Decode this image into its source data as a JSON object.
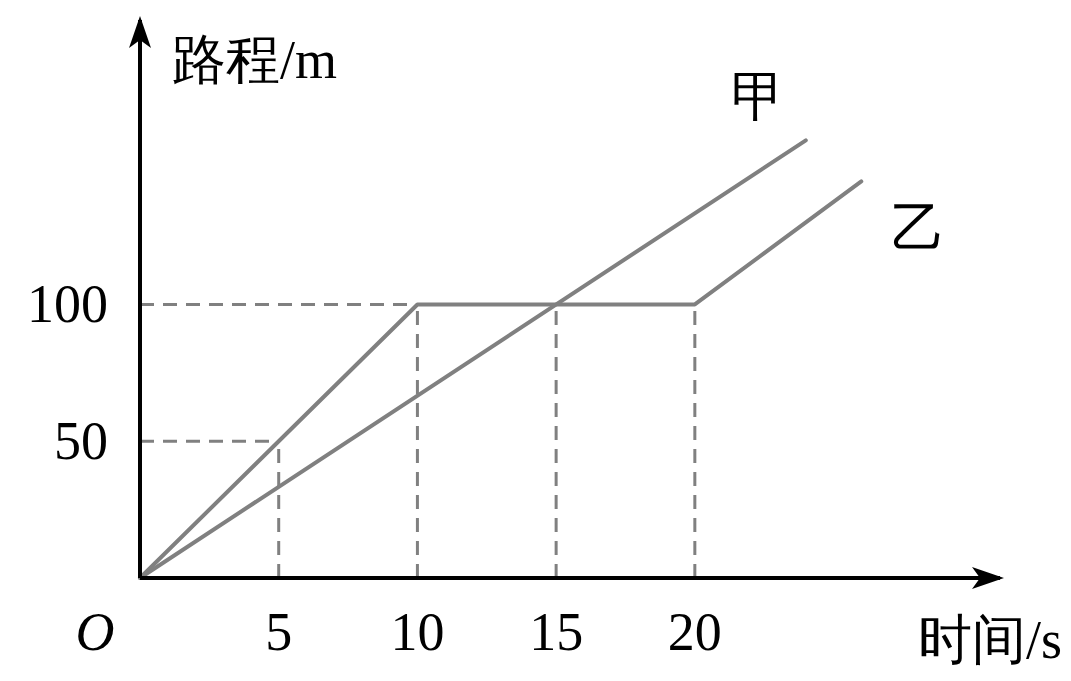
{
  "chart_data": {
    "type": "line",
    "xlabel": "时间/s",
    "ylabel": "路程/m",
    "xlim": [
      0,
      31
    ],
    "ylim": [
      0,
      204
    ],
    "xticks": [
      5,
      10,
      15,
      20
    ],
    "annotations": [
      "O"
    ],
    "yticks": [
      50,
      100
    ],
    "series": [
      {
        "name": "甲",
        "color": "#808080",
        "x": [
          0,
          24
        ],
        "values": [
          0,
          160
        ]
      },
      {
        "name": "乙",
        "color": "#808080",
        "x": [
          0,
          5,
          10,
          15,
          20,
          26
        ],
        "values": [
          0,
          50,
          100,
          100,
          100,
          145
        ]
      }
    ],
    "ref_lines": [
      {
        "axis": "y",
        "value": 50,
        "color": "#808080",
        "line_style": "dashed"
      },
      {
        "axis": "y",
        "value": 100,
        "color": "#808080",
        "line_style": "dashed"
      },
      {
        "axis": "x",
        "value": 5,
        "color": "#808080",
        "line_style": "dashed"
      },
      {
        "axis": "x",
        "value": 10,
        "color": "#808080",
        "line_style": "dashed"
      },
      {
        "axis": "x",
        "value": 15,
        "color": "#808080",
        "line_style": "dashed"
      },
      {
        "axis": "x",
        "value": 20,
        "color": "#808080",
        "line_style": "dashed"
      }
    ]
  }
}
